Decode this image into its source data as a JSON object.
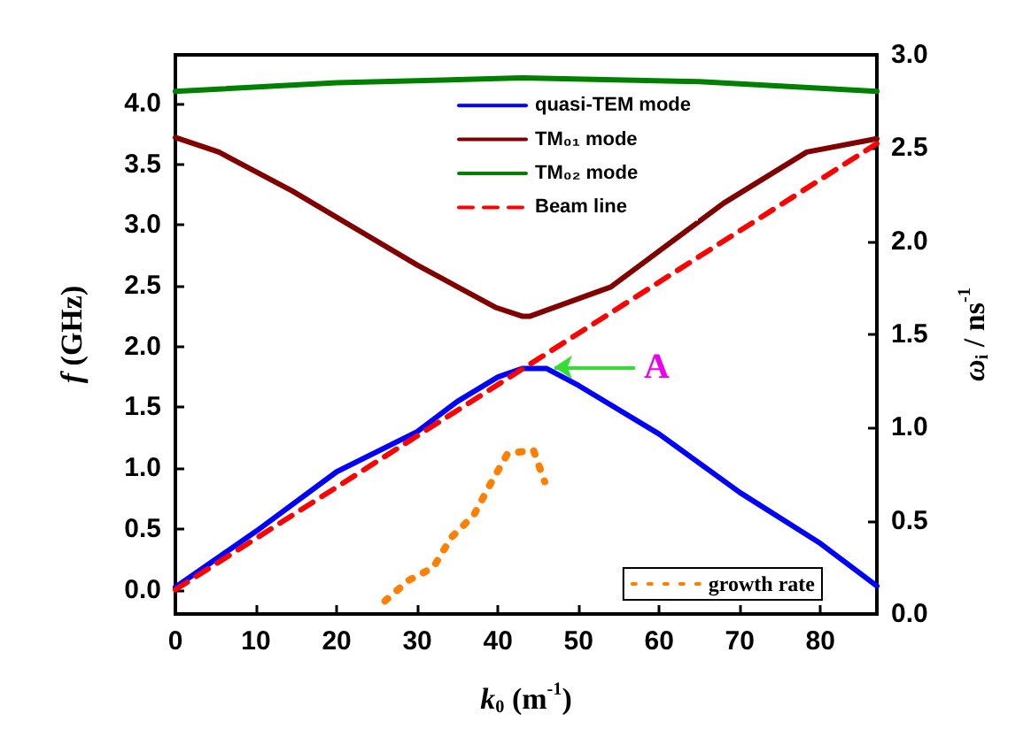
{
  "chart_data": {
    "type": "line",
    "xlabel": "k$_{0}$ (m$^{-1}$)",
    "ylabel": "f (GHz)",
    "y2label": "ω$_{i}$ / ns$^{-1}$",
    "xlim": [
      0,
      87
    ],
    "xticks": [
      0,
      10,
      20,
      30,
      40,
      50,
      60,
      70,
      80
    ],
    "ylim": [
      -0.2,
      4.4
    ],
    "yticks": [
      {
        "value": 0,
        "label": "0.0"
      },
      0.5,
      {
        "value": 1,
        "label": "1.0"
      },
      1.5,
      {
        "value": 2,
        "label": "2.0"
      },
      2.5,
      {
        "value": 3,
        "label": "3.0"
      },
      3.5,
      {
        "value": 4,
        "label": "4.0"
      }
    ],
    "y2lim": [
      0,
      3
    ],
    "y2ticks": [
      {
        "value": 0,
        "label": "0.0"
      },
      0.5,
      {
        "value": 1,
        "label": "1.0"
      },
      1.5,
      {
        "value": 2,
        "label": "2.0"
      },
      2.5,
      {
        "value": 3,
        "label": "3.0"
      }
    ],
    "grid": false,
    "legend": "right",
    "marker": "none",
    "annotations": [
      {
        "text": "A",
        "x": 47,
        "y": 1.83
      }
    ],
    "series": [
      {
        "name": "quasi-TEM mode",
        "color": "#0000ff",
        "line_style": "solid",
        "x": [
          0,
          10,
          20,
          30,
          35,
          40,
          43,
          46,
          50,
          60,
          70,
          80,
          87
        ],
        "values": [
          0.02,
          0.48,
          0.97,
          1.3,
          1.55,
          1.75,
          1.82,
          1.82,
          1.68,
          1.28,
          0.8,
          0.38,
          0.03
        ]
      },
      {
        "name": "TM₀₁ mode",
        "color": "#800000",
        "line_style": "solid",
        "x": [
          0,
          5.4,
          14.5,
          30,
          39.8,
          43,
          44,
          54,
          68,
          78.3,
          87
        ],
        "values": [
          3.72,
          3.6,
          3.28,
          2.67,
          2.32,
          2.25,
          2.25,
          2.49,
          3.18,
          3.6,
          3.71
        ]
      },
      {
        "name": "TM₀₂ mode",
        "color": "#008000",
        "line_style": "solid",
        "x": [
          0,
          20,
          43,
          65,
          87
        ],
        "values": [
          4.1,
          4.17,
          4.21,
          4.18,
          4.1
        ]
      },
      {
        "name": "Beam line",
        "color": "#ff0000",
        "line_style": "dashed",
        "x": [
          0,
          87
        ],
        "values": [
          0,
          3.67
        ]
      },
      {
        "name": "growth rate",
        "color": "#ff8000",
        "line_style": "dotted",
        "axis": "y2",
        "x": [
          26,
          28.9,
          32,
          34.2,
          37,
          39.1,
          41.2,
          44.4,
          45.8
        ],
        "values": [
          0.07,
          0.18,
          0.25,
          0.41,
          0.53,
          0.7,
          0.86,
          0.88,
          0.71
        ]
      }
    ]
  }
}
